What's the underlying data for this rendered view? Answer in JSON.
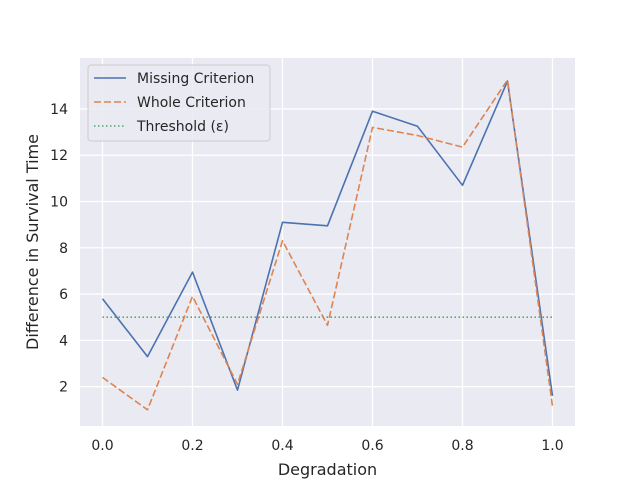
{
  "chart_data": {
    "type": "line",
    "title": "",
    "xlabel": "Degradation",
    "ylabel": "Difference in Survival Time",
    "xlim": [
      -0.05,
      1.05
    ],
    "ylim": [
      0.3,
      16.2
    ],
    "grid": true,
    "legend_position": "top-left",
    "x": [
      0.0,
      0.1,
      0.2,
      0.3,
      0.4,
      0.5,
      0.6,
      0.7,
      0.8,
      0.9,
      1.0
    ],
    "x_ticks": [
      0.0,
      0.2,
      0.4,
      0.6,
      0.8,
      1.0
    ],
    "x_tick_labels": [
      "0.0",
      "0.2",
      "0.4",
      "0.6",
      "0.8",
      "1.0"
    ],
    "y_ticks": [
      2,
      4,
      6,
      8,
      10,
      12,
      14
    ],
    "y_tick_labels": [
      "2",
      "4",
      "6",
      "8",
      "10",
      "12",
      "14"
    ],
    "series": [
      {
        "name": "Missing Criterion",
        "style": "solid",
        "color": "#4c72b0",
        "values": [
          5.8,
          3.3,
          6.95,
          1.85,
          9.1,
          8.95,
          13.9,
          13.25,
          10.7,
          15.2,
          1.6
        ]
      },
      {
        "name": "Whole Criterion",
        "style": "dashed",
        "color": "#dd8452",
        "values": [
          2.4,
          1.0,
          5.9,
          2.1,
          8.3,
          4.65,
          13.2,
          12.85,
          12.35,
          15.25,
          1.15
        ]
      },
      {
        "name": "Threshold (ε)",
        "style": "dotted",
        "color": "#55a868",
        "values": [
          5.0,
          5.0,
          5.0,
          5.0,
          5.0,
          5.0,
          5.0,
          5.0,
          5.0,
          5.0,
          5.0
        ]
      }
    ]
  }
}
